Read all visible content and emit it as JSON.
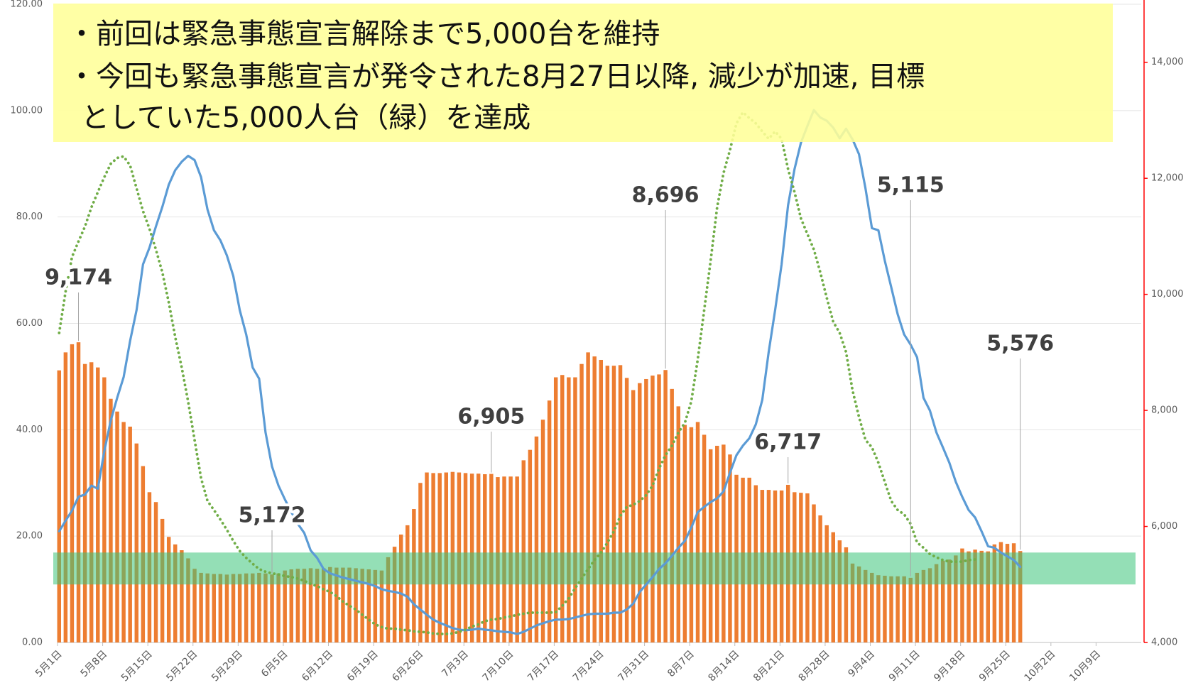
{
  "chart_data": {
    "type": "combo",
    "categories": [
      "5月1日",
      null,
      null,
      null,
      null,
      null,
      null,
      "5月8日",
      null,
      null,
      null,
      null,
      null,
      null,
      "5月15日",
      null,
      null,
      null,
      null,
      null,
      null,
      "5月22日",
      null,
      null,
      null,
      null,
      null,
      null,
      "5月29日",
      null,
      null,
      null,
      null,
      null,
      null,
      "6月5日",
      null,
      null,
      null,
      null,
      null,
      null,
      "6月12日",
      null,
      null,
      null,
      null,
      null,
      null,
      "6月19日",
      null,
      null,
      null,
      null,
      null,
      null,
      "6月26日",
      null,
      null,
      null,
      null,
      null,
      null,
      "7月3日",
      null,
      null,
      null,
      null,
      null,
      null,
      "7月10日",
      null,
      null,
      null,
      null,
      null,
      null,
      "7月17日",
      null,
      null,
      null,
      null,
      null,
      null,
      "7月24日",
      null,
      null,
      null,
      null,
      null,
      null,
      "7月31日",
      null,
      null,
      null,
      null,
      null,
      null,
      "8月7日",
      null,
      null,
      null,
      null,
      null,
      null,
      "8月14日",
      null,
      null,
      null,
      null,
      null,
      null,
      "8月21日",
      null,
      null,
      null,
      null,
      null,
      null,
      "8月28日",
      null,
      null,
      null,
      null,
      null,
      null,
      "9月4日",
      null,
      null,
      null,
      null,
      null,
      null,
      "9月11日",
      null,
      null,
      null,
      null,
      null,
      null,
      "9月18日",
      null,
      null,
      null,
      null,
      null,
      null,
      "9月25日",
      null,
      null,
      null,
      null,
      null,
      null,
      "10月2日",
      null,
      null,
      null,
      null,
      null,
      null,
      "10月9日",
      null,
      null,
      null,
      null,
      null,
      null
    ],
    "series": [
      {
        "type": "bar",
        "axis": "y2",
        "color": "#ED7D31",
        "values": [
          8690,
          9000,
          9140,
          9174,
          8800,
          8830,
          8740,
          8570,
          8200,
          7980,
          7800,
          7720,
          7430,
          7040,
          6590,
          6420,
          6130,
          5820,
          5690,
          5590,
          5450,
          5270,
          5200,
          5190,
          5180,
          5180,
          5170,
          5180,
          5180,
          5190,
          5190,
          5200,
          5190,
          5172,
          5190,
          5240,
          5260,
          5270,
          5270,
          5280,
          5270,
          5280,
          5300,
          5290,
          5290,
          5290,
          5280,
          5270,
          5260,
          5250,
          5240,
          5470,
          5650,
          5860,
          6020,
          6300,
          6750,
          6930,
          6920,
          6920,
          6930,
          6940,
          6930,
          6920,
          6910,
          6910,
          6900,
          6905,
          6850,
          6860,
          6860,
          6860,
          7140,
          7320,
          7550,
          7840,
          8170,
          8570,
          8610,
          8570,
          8570,
          8800,
          9000,
          8930,
          8870,
          8770,
          8770,
          8780,
          8560,
          8350,
          8470,
          8540,
          8600,
          8620,
          8696,
          8370,
          8070,
          7750,
          7710,
          7800,
          7580,
          7330,
          7390,
          7410,
          7240,
          6890,
          6840,
          6840,
          6710,
          6630,
          6630,
          6620,
          6620,
          6717,
          6590,
          6580,
          6570,
          6380,
          6190,
          6020,
          5900,
          5760,
          5640,
          5360,
          5310,
          5250,
          5200,
          5160,
          5150,
          5140,
          5140,
          5140,
          5115,
          5200,
          5250,
          5280,
          5350,
          5410,
          5430,
          5500,
          5620,
          5570,
          5600,
          5580,
          5570,
          5690,
          5730,
          5700,
          5710,
          5576,
          null,
          null,
          null,
          null,
          null,
          null,
          null,
          null,
          null,
          null,
          null,
          null,
          null,
          null,
          null,
          null,
          null,
          null
        ],
        "value_labels": [
          null,
          null,
          null,
          "9,174",
          null,
          null,
          null,
          null,
          null,
          null,
          null,
          null,
          null,
          null,
          null,
          null,
          null,
          null,
          null,
          null,
          null,
          null,
          null,
          null,
          null,
          null,
          null,
          null,
          null,
          null,
          null,
          null,
          null,
          "5,172",
          null,
          null,
          null,
          null,
          null,
          null,
          null,
          null,
          null,
          null,
          null,
          null,
          null,
          null,
          null,
          null,
          null,
          null,
          null,
          null,
          null,
          null,
          null,
          null,
          null,
          null,
          null,
          null,
          null,
          null,
          null,
          null,
          null,
          "6,905",
          null,
          null,
          null,
          null,
          null,
          null,
          null,
          null,
          null,
          null,
          null,
          null,
          null,
          null,
          null,
          null,
          null,
          null,
          null,
          null,
          null,
          null,
          null,
          null,
          null,
          null,
          "8,696",
          null,
          null,
          null,
          null,
          null,
          null,
          null,
          null,
          null,
          null,
          null,
          null,
          null,
          null,
          null,
          null,
          null,
          null,
          "6,717",
          null,
          null,
          null,
          null,
          null,
          null,
          null,
          null,
          null,
          null,
          null,
          null,
          null,
          null,
          null,
          null,
          null,
          null,
          "5,115",
          null,
          null,
          null,
          null,
          null,
          null,
          null,
          null,
          null,
          null,
          null,
          null,
          null,
          null,
          null,
          null,
          "5,576",
          null,
          null,
          null,
          null,
          null,
          null,
          null,
          null,
          null,
          null,
          null,
          null,
          null,
          null,
          null,
          null,
          null,
          null
        ]
      },
      {
        "type": "line",
        "color": "#5B9BD5",
        "values": [
          20.9,
          22.9,
          24.8,
          27.4,
          27.8,
          29.5,
          28.9,
          36.0,
          41.7,
          46.0,
          49.9,
          56.7,
          62.5,
          71.1,
          74.2,
          78.2,
          81.9,
          86.1,
          88.8,
          90.4,
          91.5,
          90.7,
          87.5,
          81.4,
          77.5,
          75.6,
          72.8,
          68.9,
          62.5,
          57.9,
          51.7,
          49.6,
          39.5,
          33.1,
          29.5,
          26.9,
          24.5,
          22.3,
          20.6,
          17.3,
          15.9,
          13.8,
          13.0,
          12.6,
          12.2,
          11.9,
          11.6,
          11.3,
          11.0,
          10.6,
          10.0,
          9.7,
          9.5,
          9.2,
          8.6,
          7.2,
          6.2,
          5.2,
          4.3,
          3.7,
          3.2,
          2.7,
          2.4,
          2.3,
          2.4,
          2.6,
          2.4,
          2.3,
          2.1,
          2.0,
          1.9,
          1.6,
          2.0,
          2.6,
          3.2,
          3.6,
          4.0,
          4.3,
          4.3,
          4.4,
          4.7,
          5.0,
          5.3,
          5.4,
          5.4,
          5.4,
          5.6,
          5.6,
          6.2,
          7.3,
          9.5,
          10.9,
          12.3,
          13.8,
          14.9,
          16.3,
          17.8,
          19.1,
          21.6,
          24.5,
          25.5,
          26.4,
          27.1,
          28.4,
          31.9,
          35.2,
          37.0,
          38.4,
          41.0,
          45.6,
          54.6,
          62.5,
          71.1,
          82.2,
          89.0,
          94.0,
          97.1,
          100.1,
          98.7,
          98.1,
          96.8,
          94.8,
          96.6,
          94.6,
          91.8,
          85.4,
          77.9,
          77.5,
          71.8,
          66.8,
          61.7,
          57.9,
          56.0,
          53.6,
          46.0,
          43.6,
          39.5,
          36.7,
          33.8,
          30.2,
          27.4,
          24.9,
          23.5,
          20.9,
          18.1,
          17.8,
          16.9,
          16.2,
          15.5,
          14.2,
          null,
          null,
          null,
          null,
          null,
          null,
          null,
          null,
          null,
          null,
          null,
          null,
          null,
          null,
          null,
          null,
          null,
          null
        ]
      },
      {
        "type": "line",
        "style": "dotted",
        "color": "#70AD47",
        "values": [
          58.2,
          66.0,
          72.5,
          75.4,
          78.2,
          81.8,
          84.7,
          87.5,
          90.0,
          91.1,
          91.4,
          89.7,
          85.4,
          81.1,
          77.8,
          73.9,
          69.6,
          63.9,
          57.4,
          51.7,
          45.3,
          38.1,
          30.9,
          26.6,
          24.9,
          23.1,
          21.2,
          19.1,
          17.2,
          15.9,
          14.8,
          13.8,
          13.3,
          13.0,
          12.8,
          12.5,
          12.3,
          12.0,
          11.6,
          11.0,
          10.6,
          10.0,
          9.5,
          8.7,
          7.7,
          6.9,
          6.2,
          5.2,
          4.3,
          3.4,
          2.9,
          2.6,
          2.6,
          2.4,
          2.3,
          2.1,
          2.0,
          1.9,
          1.7,
          1.6,
          1.6,
          1.7,
          2.0,
          2.4,
          3.0,
          3.4,
          4.0,
          4.3,
          4.4,
          4.7,
          4.9,
          5.2,
          5.4,
          5.6,
          5.6,
          5.6,
          5.6,
          5.7,
          6.9,
          8.3,
          10.2,
          12.0,
          13.8,
          15.5,
          16.9,
          18.8,
          20.9,
          23.8,
          25.5,
          25.9,
          26.6,
          27.7,
          29.5,
          32.7,
          35.2,
          37.0,
          39.5,
          41.3,
          45.3,
          53.2,
          62.5,
          71.8,
          81.8,
          88.3,
          92.6,
          97.6,
          99.7,
          98.6,
          97.6,
          96.1,
          94.7,
          96.1,
          94.7,
          89.0,
          84.7,
          79.7,
          76.8,
          73.9,
          69.6,
          64.8,
          60.3,
          58.2,
          54.6,
          47.4,
          42.4,
          38.1,
          36.7,
          33.8,
          30.2,
          26.6,
          24.9,
          24.1,
          22.3,
          18.8,
          17.8,
          16.6,
          16.0,
          15.5,
          15.2,
          15.2,
          15.2,
          15.5,
          15.6,
          null,
          null,
          null,
          null,
          null,
          null,
          null,
          null,
          null,
          null,
          null,
          null,
          null,
          null,
          null,
          null,
          null,
          null,
          null,
          null,
          null,
          null,
          null,
          null,
          null
        ]
      }
    ],
    "ylim": [
      0,
      120
    ],
    "yticks": [
      {
        "value": 0,
        "label": "0.00"
      },
      {
        "value": 20,
        "label": "20.00"
      },
      {
        "value": 40,
        "label": "40.00"
      },
      {
        "value": 60,
        "label": "60.00"
      },
      {
        "value": 80,
        "label": "80.00"
      },
      {
        "value": 100,
        "label": "100.00"
      },
      {
        "value": 120,
        "label": "120.00"
      }
    ],
    "y2lim": [
      4000,
      15000
    ],
    "y2ticks": [
      {
        "value": 4000,
        "label": "4,000"
      },
      {
        "value": 6000,
        "label": "6,000"
      },
      {
        "value": 8000,
        "label": "8,000"
      },
      {
        "value": 10000,
        "label": "10,000"
      },
      {
        "value": 12000,
        "label": "12,000"
      },
      {
        "value": 14000,
        "label": "14,000"
      }
    ],
    "y2_axis_color": "#FF0000",
    "grid": true,
    "bands": [
      {
        "axis": "y2",
        "range": [
          5000,
          5550
        ],
        "color": "#3CC47A"
      }
    ],
    "textbox": {
      "background": "#FFFF99",
      "lines": [
        "・前回は緊急事態宣言解除まで5,000台を維持",
        "・今回も緊急事態宣言が発令された8月27日以降, 減少が加速, 目標",
        "としていた5,000人台（緑）を達成"
      ]
    }
  }
}
